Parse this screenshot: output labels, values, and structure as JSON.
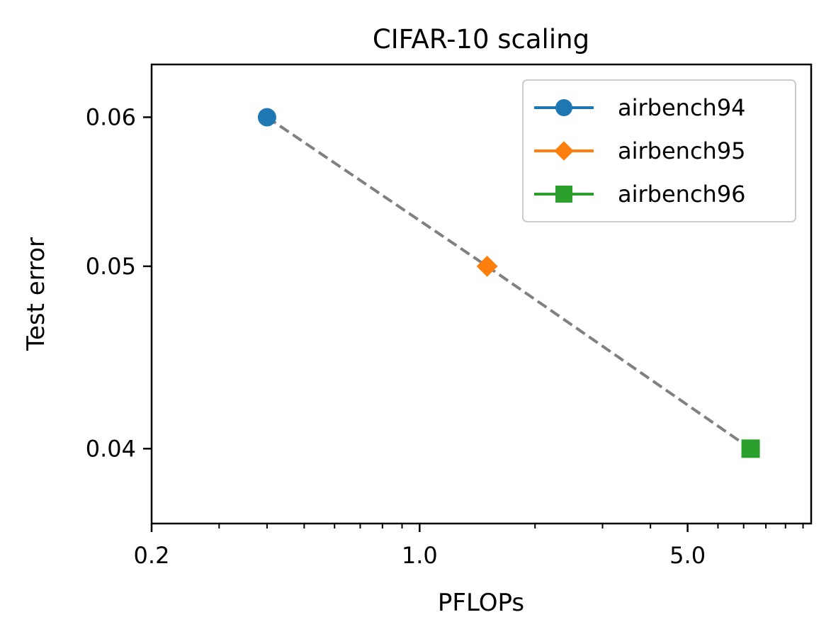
{
  "chart_data": {
    "type": "scatter",
    "title": "CIFAR-10 scaling",
    "xlabel": "PFLOPs",
    "ylabel": "Test error",
    "xscale": "log",
    "yscale": "log",
    "xlim": [
      0.2,
      10.5
    ],
    "ylim": [
      0.0365,
      0.064
    ],
    "xticks": [
      {
        "value": 0.2,
        "label": "0.2"
      },
      {
        "value": 1.0,
        "label": "1.0"
      },
      {
        "value": 5.0,
        "label": "5.0"
      }
    ],
    "xminor": [
      0.3,
      0.4,
      0.5,
      0.6,
      0.7,
      0.8,
      0.9,
      2,
      3,
      4,
      6,
      7,
      8,
      9,
      10
    ],
    "yticks": [
      {
        "value": 0.04,
        "label": "0.04"
      },
      {
        "value": 0.05,
        "label": "0.05"
      },
      {
        "value": 0.06,
        "label": "0.06"
      }
    ],
    "grid": false,
    "legend_position": "top-right",
    "series": [
      {
        "name": "airbench94",
        "x": 0.4,
        "y": 0.06,
        "color": "#1f77b4",
        "marker": "circle"
      },
      {
        "name": "airbench95",
        "x": 1.5,
        "y": 0.05,
        "color": "#ff7f0e",
        "marker": "diamond"
      },
      {
        "name": "airbench96",
        "x": 7.3,
        "y": 0.04,
        "color": "#2ca02c",
        "marker": "square"
      }
    ],
    "trend_line": {
      "style": "dashed",
      "color": "#808080",
      "connects": [
        "airbench94",
        "airbench95",
        "airbench96"
      ]
    }
  }
}
